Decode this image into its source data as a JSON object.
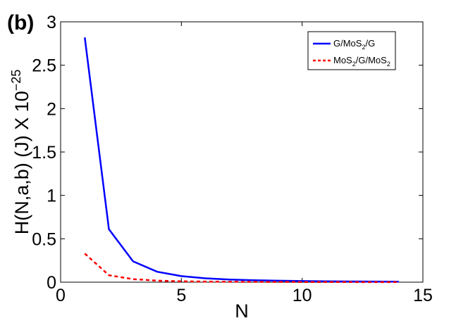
{
  "panel_label": "(b)",
  "chart_data": {
    "type": "line",
    "xlabel": "N",
    "ylabel_main": "H(N,a,b) (J) X 10",
    "ylabel_exp": "−25",
    "xlim": [
      0,
      15
    ],
    "ylim": [
      0,
      3
    ],
    "xticks": [
      0,
      5,
      10,
      15
    ],
    "xtick_labels": [
      "0",
      "5",
      "10",
      "15"
    ],
    "yticks": [
      0,
      0.5,
      1,
      1.5,
      2,
      2.5,
      3
    ],
    "ytick_labels": [
      "0",
      "0.5",
      "1",
      "1.5",
      "2",
      "2.5",
      "3"
    ],
    "grid": false,
    "legend_position": "top-right",
    "series": [
      {
        "name_parts": [
          "G/MoS",
          "2",
          "/G"
        ],
        "color": "#0000ff",
        "style": "solid",
        "x": [
          1,
          2,
          3,
          4,
          5,
          6,
          7,
          8,
          9,
          10,
          11,
          12,
          13,
          14
        ],
        "y": [
          2.82,
          0.61,
          0.24,
          0.12,
          0.07,
          0.045,
          0.03,
          0.022,
          0.017,
          0.013,
          0.01,
          0.008,
          0.007,
          0.006
        ]
      },
      {
        "name_parts": [
          "MoS",
          "2",
          "/G/MoS",
          "2"
        ],
        "color": "#ff0000",
        "style": "dashed",
        "x": [
          1,
          2,
          3,
          4,
          5,
          6,
          7,
          8,
          9,
          10,
          11,
          12,
          13,
          14
        ],
        "y": [
          0.33,
          0.08,
          0.035,
          0.018,
          0.01,
          0.007,
          0.005,
          0.004,
          0.003,
          0.0025,
          0.002,
          0.0015,
          0.0012,
          0.001
        ]
      }
    ]
  }
}
